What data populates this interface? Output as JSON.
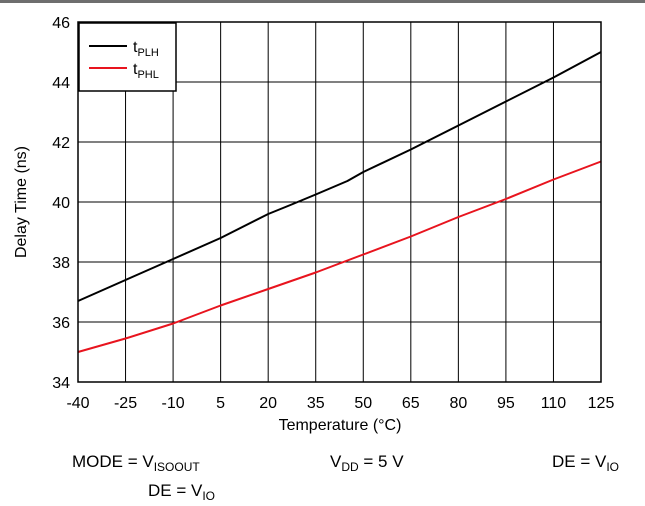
{
  "chart_data": {
    "type": "line",
    "xlabel": "Temperature (°C)",
    "ylabel": "Delay Time (ns)",
    "xlim": [
      -40,
      125
    ],
    "ylim": [
      34,
      46
    ],
    "x_ticks": [
      "-40",
      "-25",
      "-10",
      "5",
      "20",
      "35",
      "50",
      "65",
      "80",
      "95",
      "110",
      "125"
    ],
    "y_ticks": [
      "34",
      "36",
      "38",
      "40",
      "42",
      "44",
      "46"
    ],
    "grid": true,
    "legend_position": "top-left",
    "series": [
      {
        "name": "tPLH",
        "label_main": "t",
        "label_sub": "PLH",
        "color": "#000000",
        "x": [
          -40,
          -25,
          -10,
          5,
          20,
          27,
          35,
          45,
          50,
          65,
          80,
          95,
          110,
          125
        ],
        "y": [
          36.7,
          37.4,
          38.1,
          38.8,
          39.6,
          39.9,
          40.25,
          40.7,
          41.0,
          41.75,
          42.55,
          43.35,
          44.15,
          45.0
        ]
      },
      {
        "name": "tPHL",
        "label_main": "t",
        "label_sub": "PHL",
        "color": "#e8141e",
        "x": [
          -40,
          -25,
          -10,
          5,
          20,
          35,
          50,
          65,
          80,
          95,
          110,
          125
        ],
        "y": [
          35.0,
          35.45,
          35.95,
          36.55,
          37.1,
          37.65,
          38.25,
          38.85,
          39.5,
          40.1,
          40.75,
          41.35
        ]
      }
    ]
  },
  "conditions": {
    "mode": {
      "text": "MODE = V",
      "sub": "ISOOUT"
    },
    "vdd": {
      "pre": "V",
      "sub": "DD",
      "post": " = 5 V"
    },
    "de_right": {
      "text": "DE = V",
      "sub": "IO"
    },
    "de_left": {
      "text": "DE = V",
      "sub": "IO"
    }
  }
}
